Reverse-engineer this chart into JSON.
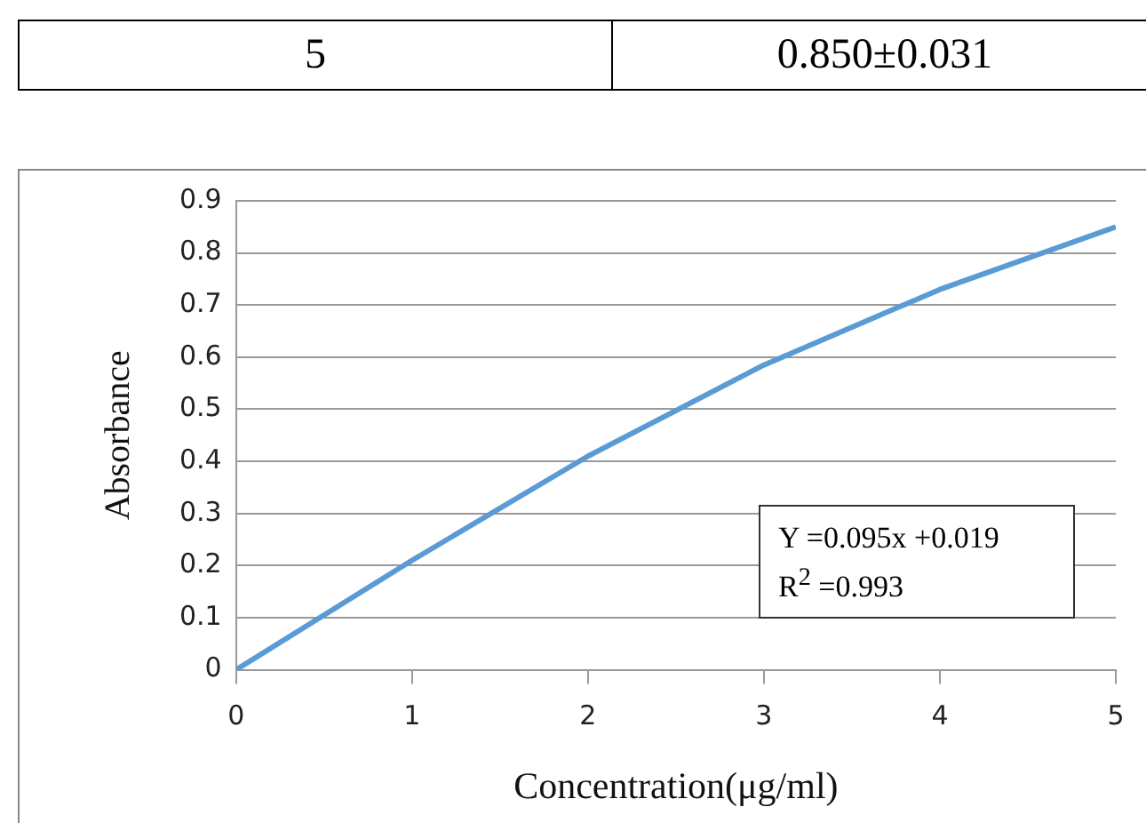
{
  "chart_data": {
    "type": "line",
    "xlabel": "Concentration(μg/ml)",
    "ylabel": "Absorbance",
    "x": [
      0,
      1,
      2,
      3,
      4,
      5
    ],
    "series": [
      {
        "color": "#5b9bd5",
        "values": [
          0,
          0.21,
          0.41,
          0.585,
          0.73,
          0.85
        ]
      }
    ],
    "xlim": [
      0,
      5
    ],
    "xticks": [
      0,
      1,
      2,
      3,
      4,
      5
    ],
    "ylim": [
      0,
      0.9
    ],
    "yticks": [
      0,
      0.1,
      0.2,
      0.3,
      0.4,
      0.5,
      0.6,
      0.7,
      0.8,
      0.9
    ],
    "grid": "y",
    "legend": false,
    "marker": "none",
    "line_style": "solid",
    "annotations": [
      "5",
      "0.850±0.031",
      "Y =0.095x +0.019",
      "R$^{2}$ =0.993"
    ]
  }
}
